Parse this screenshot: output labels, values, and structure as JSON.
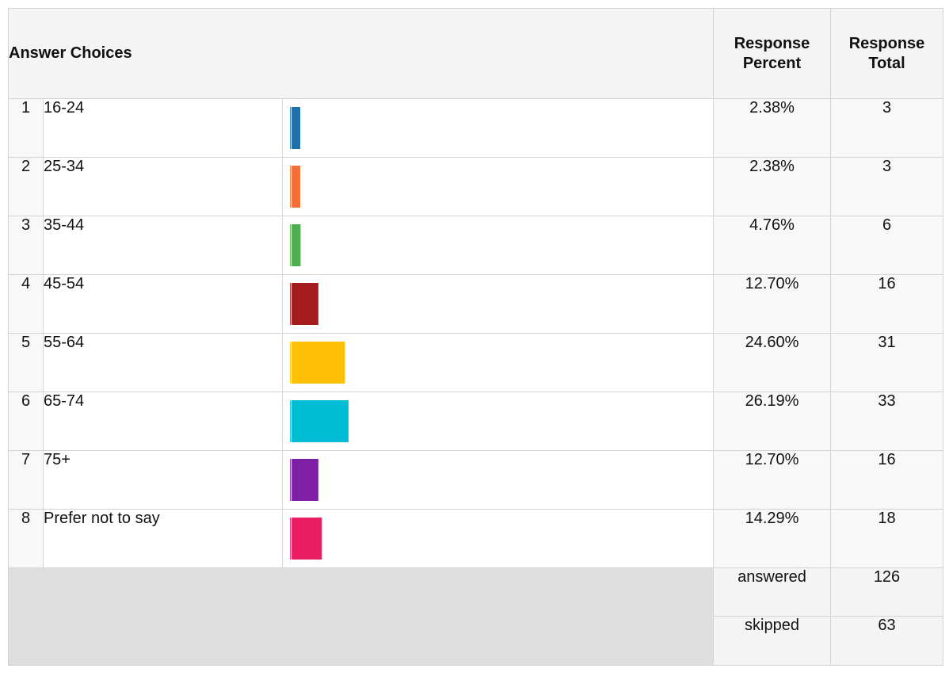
{
  "chart_data": {
    "type": "bar",
    "orientation": "horizontal",
    "x_max_percent": 100,
    "headers": {
      "answer_choices": "Answer Choices",
      "response_percent_line1": "Response",
      "response_percent_line2": "Percent",
      "response_total_line1": "Response",
      "response_total_line2": "Total"
    },
    "rows": [
      {
        "num": "1",
        "label": "16-24",
        "percent": 2.38,
        "percent_label": "2.38%",
        "total": "3",
        "color": "#1f6fa8"
      },
      {
        "num": "2",
        "label": "25-34",
        "percent": 2.38,
        "percent_label": "2.38%",
        "total": "3",
        "color": "#f36f38"
      },
      {
        "num": "3",
        "label": "35-44",
        "percent": 4.76,
        "percent_label": "4.76%",
        "total": "6",
        "color": "#4caf50"
      },
      {
        "num": "4",
        "label": "45-54",
        "percent": 12.7,
        "percent_label": "12.70%",
        "total": "16",
        "color": "#a31b1d"
      },
      {
        "num": "5",
        "label": "55-64",
        "percent": 24.6,
        "percent_label": "24.60%",
        "total": "31",
        "color": "#ffc107"
      },
      {
        "num": "6",
        "label": "65-74",
        "percent": 26.19,
        "percent_label": "26.19%",
        "total": "33",
        "color": "#00bcd4"
      },
      {
        "num": "7",
        "label": "75+",
        "percent": 12.7,
        "percent_label": "12.70%",
        "total": "16",
        "color": "#7e1fa6"
      },
      {
        "num": "8",
        "label": "Prefer not to say",
        "percent": 14.29,
        "percent_label": "14.29%",
        "total": "18",
        "color": "#e91e63"
      }
    ],
    "summary": {
      "answered_label": "answered",
      "answered_value": "126",
      "skipped_label": "skipped",
      "skipped_value": "63"
    }
  }
}
